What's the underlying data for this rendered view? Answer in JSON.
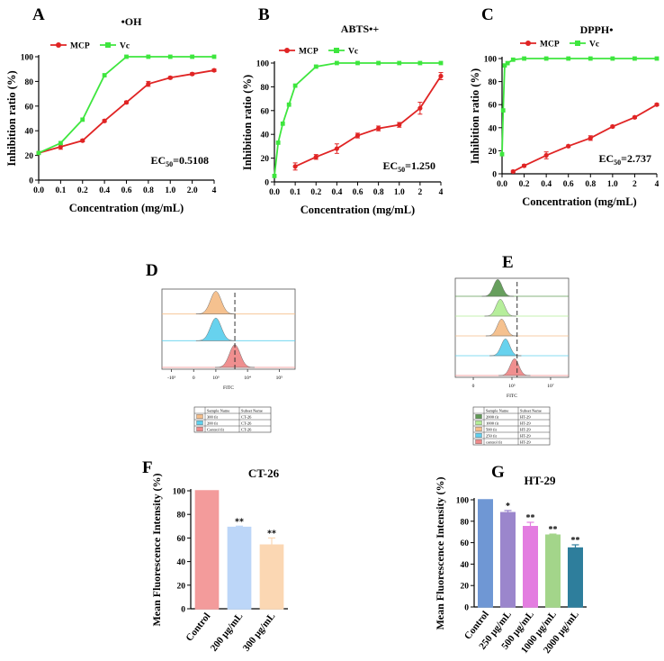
{
  "figure": {
    "labels": [
      "A",
      "B",
      "C",
      "D",
      "E",
      "F",
      "G"
    ],
    "flow_axis_label": "FITC"
  },
  "colors": {
    "mcp": "#e02424",
    "vc": "#3ee63e",
    "orange": "#f5be8a",
    "blue": "#5fd0ee",
    "red": "#ef8a8a",
    "dark_green": "#5f9a55",
    "light_green": "#b3ee96",
    "bar_e_control": "#f39b9b",
    "bar_e_200": "#bcd6f8",
    "bar_e_300": "#fbd7b3",
    "bar_g_control": "#6f97d4",
    "bar_g_250": "#9b86cc",
    "bar_g_500": "#e37de0",
    "bar_g_1000": "#a3d58a",
    "bar_g_2000": "#2e7e9c"
  },
  "chart_data": [
    {
      "id": "A",
      "type": "line",
      "title": "•OH",
      "xlabel": "Concentration (mg/mL)",
      "ylabel": "Inhibition ratio (%)",
      "categories": [
        "0.0",
        "0.1",
        "0.2",
        "0.4",
        "0.6",
        "0.8",
        "1.0",
        "2.0",
        "4"
      ],
      "ylim": [
        0,
        100
      ],
      "yticks": [
        "0",
        "20",
        "40",
        "60",
        "80",
        "100"
      ],
      "legend": [
        "MCP",
        "Vc"
      ],
      "annotation": "EC50=0.5108",
      "series": [
        {
          "name": "MCP",
          "values": [
            22,
            27,
            32,
            48,
            63,
            78,
            83,
            86,
            89
          ],
          "errors": [
            1,
            2,
            1,
            1,
            1,
            2,
            1,
            1,
            1
          ]
        },
        {
          "name": "Vc",
          "values": [
            22,
            30,
            49,
            85,
            100,
            100,
            100,
            100,
            100
          ]
        }
      ]
    },
    {
      "id": "B",
      "type": "line",
      "title": "ABTS•+",
      "xlabel": "Concentration (mg/mL)",
      "ylabel": "Inhibition ratio (%)",
      "categories": [
        "0.0",
        "0.1",
        "0.2",
        "0.4",
        "0.6",
        "0.8",
        "1.0",
        "2",
        "4"
      ],
      "ylim": [
        0,
        100
      ],
      "yticks": [
        "0",
        "20",
        "40",
        "60",
        "80",
        "100"
      ],
      "legend": [
        "MCP",
        "Vc"
      ],
      "annotation": "EC50=1.250",
      "series": [
        {
          "name": "MCP",
          "points": [
            [
              1,
              13
            ],
            [
              2,
              21
            ],
            [
              3,
              28
            ],
            [
              4,
              39
            ],
            [
              5,
              45
            ],
            [
              6,
              48
            ],
            [
              7,
              62
            ],
            [
              8,
              89
            ]
          ],
          "errors": [
            3,
            2,
            4,
            2,
            2,
            2,
            5,
            3
          ]
        },
        {
          "name": "Vc",
          "points": [
            [
              0,
              5
            ],
            [
              0.18,
              33
            ],
            [
              0.4,
              49
            ],
            [
              0.7,
              65
            ],
            [
              1,
              81
            ],
            [
              2,
              97
            ],
            [
              3,
              100
            ],
            [
              4,
              100
            ],
            [
              5,
              100
            ],
            [
              6,
              100
            ],
            [
              7,
              100
            ],
            [
              8,
              100
            ]
          ]
        }
      ]
    },
    {
      "id": "C",
      "type": "line",
      "title": "DPPH•",
      "xlabel": "Concentration (mg/mL)",
      "ylabel": "Inhibition ratio (%)",
      "categories": [
        "0.0",
        "0.2",
        "0.4",
        "0.6",
        "0.8",
        "1.0",
        "2",
        "4"
      ],
      "ylim": [
        0,
        100
      ],
      "yticks": [
        "0",
        "20",
        "40",
        "60",
        "80",
        "100"
      ],
      "legend": [
        "MCP",
        "Vc"
      ],
      "annotation": "EC50=2.737",
      "series": [
        {
          "name": "MCP",
          "points": [
            [
              0.5,
              2
            ],
            [
              1,
              7
            ],
            [
              2,
              16
            ],
            [
              3,
              24
            ],
            [
              4,
              31
            ],
            [
              5,
              41
            ],
            [
              6,
              49
            ],
            [
              7,
              60
            ]
          ],
          "errors": [
            1,
            1,
            3,
            1,
            2,
            1,
            1,
            1
          ]
        },
        {
          "name": "Vc",
          "points": [
            [
              0,
              17
            ],
            [
              0.05,
              55
            ],
            [
              0.12,
              94
            ],
            [
              0.25,
              96
            ],
            [
              0.5,
              99
            ],
            [
              1,
              100
            ],
            [
              2,
              100
            ],
            [
              3,
              100
            ],
            [
              4,
              100
            ],
            [
              5,
              100
            ],
            [
              6,
              100
            ],
            [
              7,
              100
            ]
          ]
        }
      ]
    },
    {
      "id": "D",
      "type": "histogram",
      "xlabel": "FITC",
      "xticks": [
        "-10³",
        "0",
        "10³",
        "10⁴",
        "10⁵"
      ],
      "peaks": [
        {
          "sample": "300 fit",
          "peak_log": 3.0,
          "color": "orange"
        },
        {
          "sample": "200 fit",
          "peak_log": 3.0,
          "color": "blue"
        },
        {
          "sample": "Control fit",
          "peak_log": 3.6,
          "color": "red"
        }
      ],
      "legend_table": {
        "headers": [
          "Sample Name",
          "Subset Name"
        ],
        "rows": [
          [
            "300 fit",
            "CT-26"
          ],
          [
            "200 fit",
            "CT-26"
          ],
          [
            "Control fit",
            "CT-26"
          ]
        ]
      }
    },
    {
      "id": "F",
      "type": "histogram",
      "xlabel": "FITC",
      "xticks": [
        "0",
        "10⁵",
        "10⁷"
      ],
      "peaks": [
        {
          "sample": "2000 fit",
          "peak_log": 4.55,
          "color": "dark_green"
        },
        {
          "sample": "1000 fit",
          "peak_log": 4.65,
          "color": "light_green"
        },
        {
          "sample": "500 fit",
          "peak_log": 4.7,
          "color": "orange"
        },
        {
          "sample": "250 fit",
          "peak_log": 4.85,
          "color": "blue"
        },
        {
          "sample": "control fit",
          "peak_log": 5.2,
          "color": "red"
        }
      ],
      "legend_table": {
        "headers": [
          "Sample Name",
          "Subset Name"
        ],
        "rows": [
          [
            "2000 fit",
            "HT-29"
          ],
          [
            "1000 fit",
            "HT-29"
          ],
          [
            "500 fit",
            "HT-29"
          ],
          [
            "250 fit",
            "HT-29"
          ],
          [
            "control fit",
            "HT-29"
          ]
        ]
      }
    },
    {
      "id": "E",
      "type": "bar",
      "title": "CT-26",
      "ylabel": "Mean Fluorescence Intensity (%)",
      "categories": [
        "Control",
        "200 μg/mL",
        "300 μg/mL"
      ],
      "values": [
        100,
        69,
        54
      ],
      "errors": [
        0,
        1,
        6
      ],
      "significance": [
        "",
        "**",
        "**"
      ],
      "ylim": [
        0,
        100
      ],
      "yticks": [
        "0",
        "20",
        "40",
        "60",
        "80",
        "100"
      ]
    },
    {
      "id": "G",
      "type": "bar",
      "title": "HT-29",
      "ylabel": "Mean Fluorescence Intensity (%)",
      "categories": [
        "Control",
        "250 μg/mL",
        "500 μg/mL",
        "1000 μg/mL",
        "2000 μg/mL"
      ],
      "values": [
        100,
        88,
        75,
        67,
        55
      ],
      "errors": [
        0,
        2,
        4,
        1,
        3
      ],
      "significance": [
        "",
        "*",
        "**",
        "**",
        "**"
      ],
      "ylim": [
        0,
        100
      ],
      "yticks": [
        "0",
        "20",
        "40",
        "60",
        "80",
        "100"
      ]
    }
  ]
}
